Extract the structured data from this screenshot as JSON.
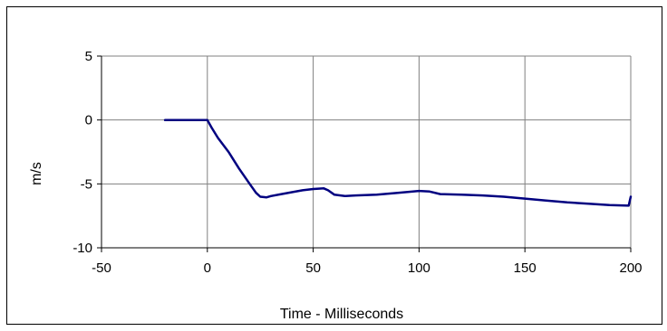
{
  "chart_data": {
    "type": "line",
    "title": "",
    "xlabel": "Time - Milliseconds",
    "ylabel": "m/s",
    "xlim": [
      -50,
      200
    ],
    "ylim": [
      -10,
      5
    ],
    "xticks": [
      -50,
      0,
      50,
      100,
      150,
      200
    ],
    "yticks": [
      -10,
      -5,
      0,
      5
    ],
    "grid": true,
    "legend": "none",
    "colors": {
      "line": "#000080",
      "grid": "#808080",
      "axis": "#000000"
    },
    "series": [
      {
        "x": [
          -20,
          -10,
          0,
          2,
          5,
          10,
          15,
          20,
          23,
          25,
          28,
          30,
          35,
          40,
          45,
          50,
          55,
          57,
          60,
          65,
          70,
          80,
          90,
          100,
          105,
          110,
          120,
          130,
          140,
          150,
          160,
          170,
          180,
          190,
          199,
          200
        ],
        "y": [
          0,
          0,
          0,
          -0.6,
          -1.4,
          -2.5,
          -3.8,
          -5.0,
          -5.7,
          -6.0,
          -6.05,
          -5.95,
          -5.8,
          -5.65,
          -5.5,
          -5.4,
          -5.35,
          -5.5,
          -5.85,
          -5.95,
          -5.9,
          -5.85,
          -5.7,
          -5.55,
          -5.6,
          -5.8,
          -5.85,
          -5.9,
          -6.0,
          -6.15,
          -6.3,
          -6.45,
          -6.55,
          -6.65,
          -6.7,
          -6.0
        ]
      }
    ]
  }
}
